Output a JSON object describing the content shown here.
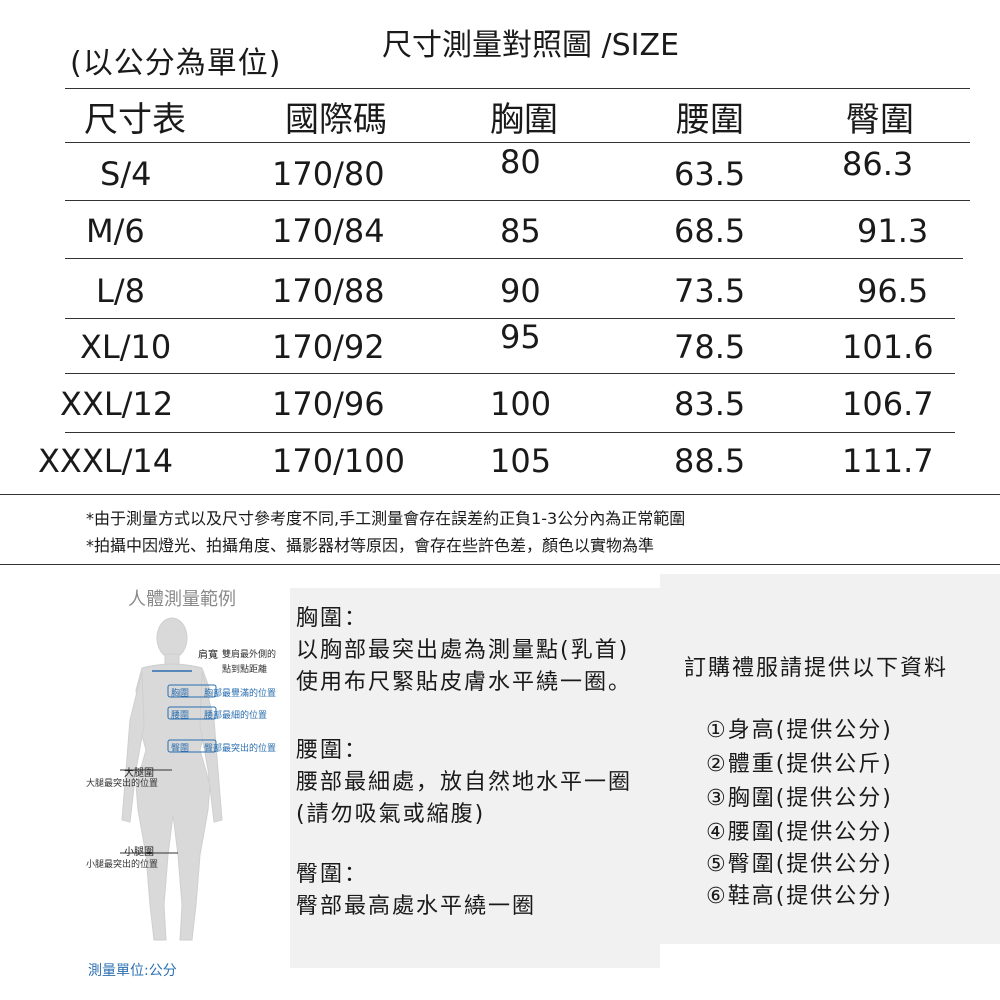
{
  "header": {
    "unit_note": "(以公分為單位)",
    "title": "尺寸測量對照圖 /SIZE"
  },
  "table": {
    "columns": [
      "尺寸表",
      "國際碼",
      "胸圍",
      "腰圍",
      "臀圍"
    ],
    "rows": [
      [
        "S/4",
        "170/80",
        "80",
        "63.5",
        "86.3"
      ],
      [
        "M/6",
        "170/84",
        "85",
        "68.5",
        "91.3"
      ],
      [
        "L/8",
        "170/88",
        "90",
        "73.5",
        "96.5"
      ],
      [
        "XL/10",
        "170/92",
        "95",
        "78.5",
        "101.6"
      ],
      [
        "XXL/12",
        "170/96",
        "100",
        "83.5",
        "106.7"
      ],
      [
        "XXXL/14",
        "170/100",
        "105",
        "88.5",
        "111.7"
      ]
    ]
  },
  "notes": [
    "*由于測量方式以及尺寸參考度不同,手工測量會存在誤差約正負1-3公分內為正常範圍",
    "*拍攝中因燈光、拍攝角度、攝影器材等原因，會存在些許色差，顏色以實物為準"
  ],
  "figure": {
    "title": "人體測量範例",
    "shoulder_label": "肩寬",
    "shoulder_desc_1": "雙肩最外側的",
    "shoulder_desc_2": "點到點距離",
    "chest_label": "胸圍",
    "chest_desc": "胸部最豐滿的位置",
    "waist_label": "腰圍",
    "waist_desc": "腰部最細的位置",
    "hip_label": "臀圍",
    "hip_desc": "臀部最突出的位置",
    "thigh_label": "大腿圍",
    "thigh_desc": "大腿最突出的位置",
    "calf_label": "小腿圍",
    "calf_desc": "小腿最突出的位置",
    "unit": "測量單位:公分"
  },
  "instructions": {
    "chest_heading": "胸圍：",
    "chest_line1": "以胸部最突出處為測量點(乳首)",
    "chest_line2": "使用布尺緊貼皮膚水平繞一圈。",
    "waist_heading": "腰圍：",
    "waist_line1": "腰部最細處，放自然地水平一圈",
    "waist_line2": "(請勿吸氣或縮腹)",
    "hip_heading": "臀圍：",
    "hip_line1": "臀部最高處水平繞一圈"
  },
  "order_info": {
    "title": "訂購禮服請提供以下資料",
    "items": [
      "①身高(提供公分)",
      "②體重(提供公斤)",
      "③胸圍(提供公分)",
      "④腰圍(提供公分)",
      "⑤臀圍(提供公分)",
      "⑥鞋高(提供公分)"
    ]
  },
  "colors": {
    "accent_blue": "#2b6fb0",
    "body_silhouette": "#d9d9d9",
    "panel_gray": "#f1f1f1"
  }
}
